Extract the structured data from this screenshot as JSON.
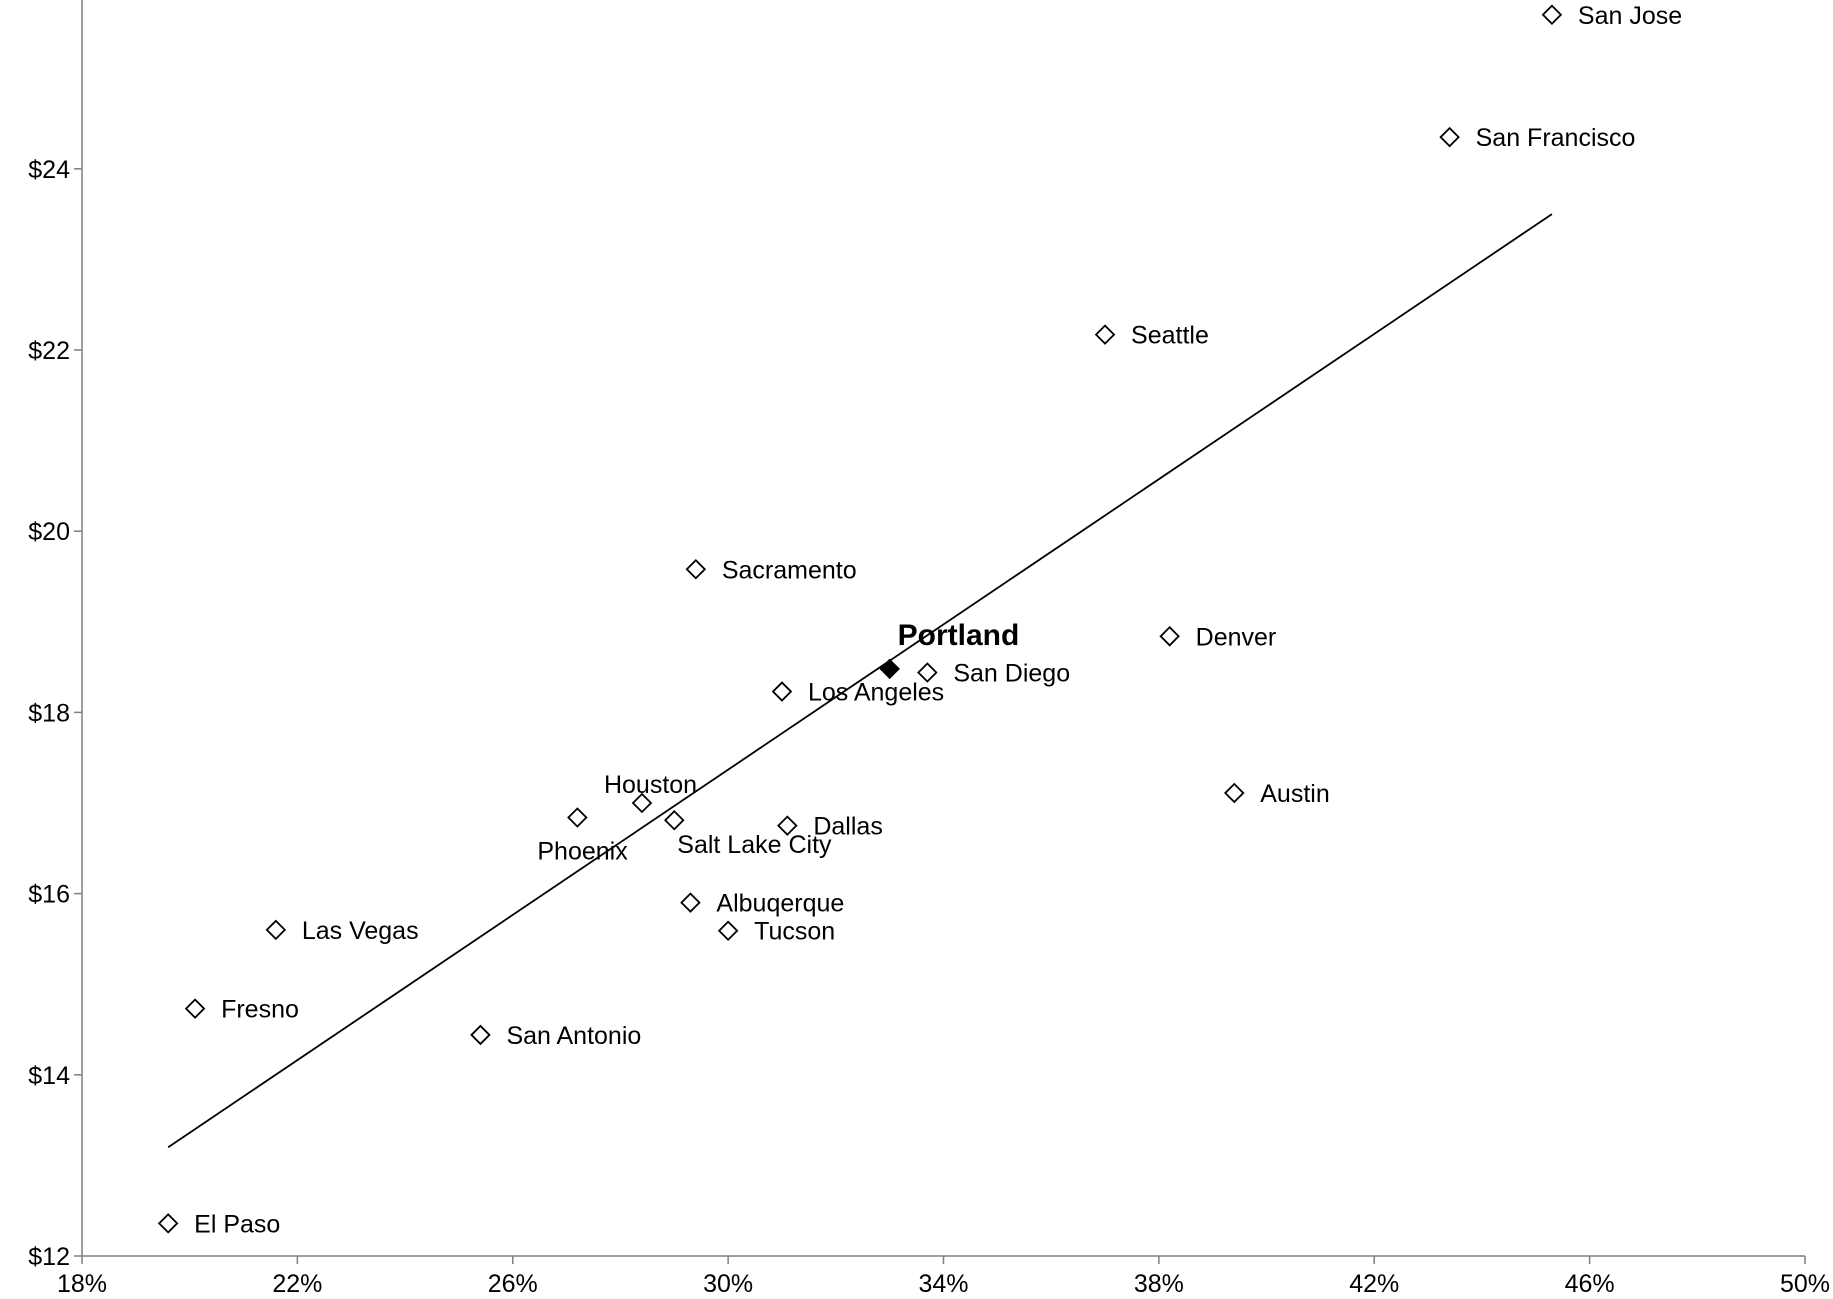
{
  "chart_data": {
    "type": "scatter",
    "title": "",
    "xlabel": "",
    "ylabel": "",
    "xlim": [
      0.18,
      0.5
    ],
    "ylim": [
      12,
      26
    ],
    "x_ticks": [
      0.18,
      0.22,
      0.26,
      0.3,
      0.34,
      0.38,
      0.42,
      0.46,
      0.5
    ],
    "x_tick_labels": [
      "18%",
      "22%",
      "26%",
      "30%",
      "34%",
      "38%",
      "42%",
      "46%",
      "50%"
    ],
    "y_ticks": [
      12,
      14,
      16,
      18,
      20,
      22,
      24
    ],
    "y_tick_labels": [
      "$12",
      "$14",
      "$16",
      "$18",
      "$20",
      "$22",
      "$24"
    ],
    "grid": false,
    "legend": "none",
    "colors": {
      "marker_stroke": "#000000",
      "marker_fill": "#ffffff",
      "highlight_fill": "#000000",
      "axis": "#7f7f7f",
      "trend": "#000000"
    },
    "trendline": {
      "x": [
        0.196,
        0.453
      ],
      "y": [
        13.2,
        23.5
      ]
    },
    "points": [
      {
        "label": "San Jose",
        "x": 0.453,
        "y": 25.7,
        "label_pos": "right",
        "highlight": false
      },
      {
        "label": "San Francisco",
        "x": 0.434,
        "y": 24.35,
        "label_pos": "right",
        "highlight": false
      },
      {
        "label": "Seattle",
        "x": 0.37,
        "y": 22.17,
        "label_pos": "right",
        "highlight": false
      },
      {
        "label": "Sacramento",
        "x": 0.294,
        "y": 19.58,
        "label_pos": "right",
        "highlight": false
      },
      {
        "label": "Denver",
        "x": 0.382,
        "y": 18.84,
        "label_pos": "right",
        "highlight": false
      },
      {
        "label": "Portland",
        "x": 0.33,
        "y": 18.48,
        "label_pos": "above-right",
        "highlight": true
      },
      {
        "label": "San Diego",
        "x": 0.337,
        "y": 18.44,
        "label_pos": "right",
        "highlight": false
      },
      {
        "label": "Los Angeles",
        "x": 0.31,
        "y": 18.23,
        "label_pos": "right",
        "highlight": false
      },
      {
        "label": "Austin",
        "x": 0.394,
        "y": 17.11,
        "label_pos": "right",
        "highlight": false
      },
      {
        "label": "Houston",
        "x": 0.284,
        "y": 17.0,
        "label_pos": "above-left",
        "highlight": false
      },
      {
        "label": "Phoenix",
        "x": 0.272,
        "y": 16.84,
        "label_pos": "below",
        "highlight": false
      },
      {
        "label": "Salt Lake City",
        "x": 0.29,
        "y": 16.81,
        "label_pos": "below-right",
        "highlight": false
      },
      {
        "label": "Dallas",
        "x": 0.311,
        "y": 16.75,
        "label_pos": "right",
        "highlight": false
      },
      {
        "label": "Albuqerque",
        "x": 0.293,
        "y": 15.9,
        "label_pos": "right",
        "highlight": false
      },
      {
        "label": "Tucson",
        "x": 0.3,
        "y": 15.59,
        "label_pos": "right",
        "highlight": false
      },
      {
        "label": "Las Vegas",
        "x": 0.216,
        "y": 15.6,
        "label_pos": "right",
        "highlight": false
      },
      {
        "label": "Fresno",
        "x": 0.201,
        "y": 14.73,
        "label_pos": "right",
        "highlight": false
      },
      {
        "label": "San Antonio",
        "x": 0.254,
        "y": 14.44,
        "label_pos": "right",
        "highlight": false
      },
      {
        "label": "El Paso",
        "x": 0.196,
        "y": 12.36,
        "label_pos": "right",
        "highlight": false
      }
    ]
  }
}
